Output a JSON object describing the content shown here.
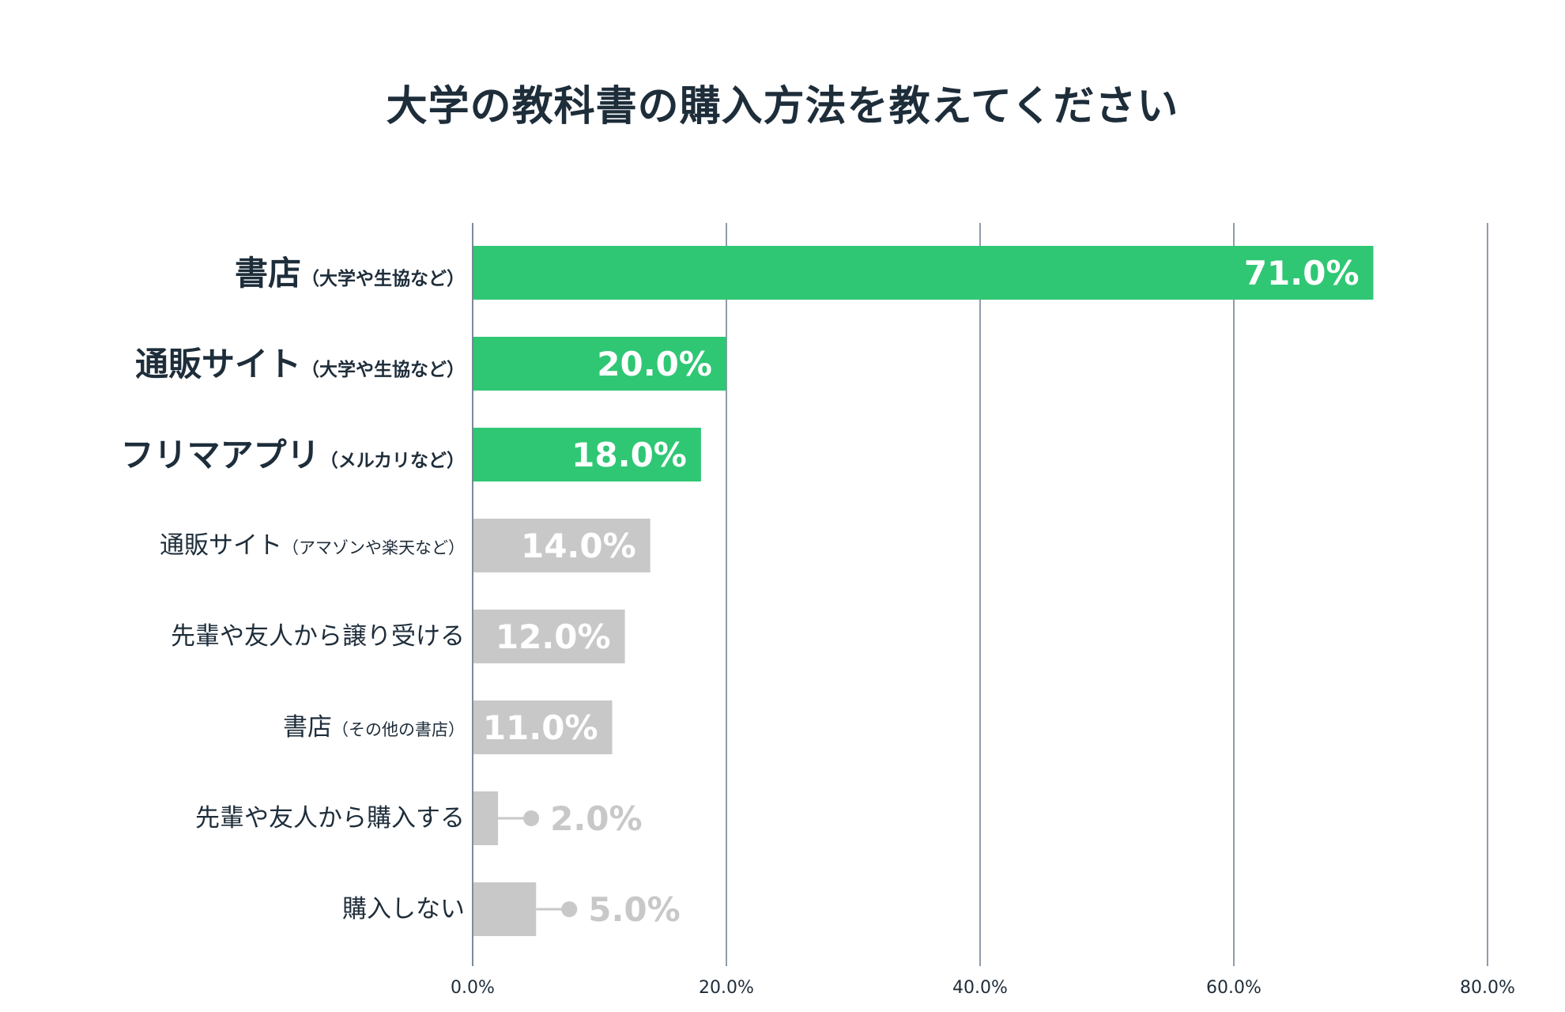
{
  "chart_data": {
    "type": "bar",
    "orientation": "horizontal",
    "title": "大学の教科書の購入方法を教えてください",
    "xlabel": "",
    "ylabel": "",
    "xlim": [
      0,
      80
    ],
    "grid": true,
    "x_ticks": [
      "0.0%",
      "20.0%",
      "40.0%",
      "60.0%",
      "80.0%"
    ],
    "categories": [
      {
        "main": "書店",
        "sub": "（大学や生協など）",
        "highlight": true
      },
      {
        "main": "通販サイト",
        "sub": "（大学や生協など）",
        "highlight": true
      },
      {
        "main": "フリマアプリ",
        "sub": "（メルカリなど）",
        "highlight": true
      },
      {
        "main": "通販サイト",
        "sub": "（アマゾンや楽天など）",
        "highlight": false
      },
      {
        "main": "先輩や友人から譲り受ける",
        "sub": "",
        "highlight": false
      },
      {
        "main": "書店",
        "sub": "（その他の書店）",
        "highlight": false
      },
      {
        "main": "先輩や友人から購入する",
        "sub": "",
        "highlight": false
      },
      {
        "main": "購入しない",
        "sub": "",
        "highlight": false
      }
    ],
    "values": [
      71.0,
      20.0,
      18.0,
      14.0,
      12.0,
      11.0,
      2.0,
      5.0
    ],
    "value_labels": [
      "71.0%",
      "20.0%",
      "18.0%",
      "14.0%",
      "12.0%",
      "11.0%",
      "2.0%",
      "5.0%"
    ],
    "colors": {
      "highlight": "#2fc774",
      "normal": "#c8c8c8",
      "gridline": "#6b7a90",
      "text": "#1e2d3a",
      "inside_label": "#ffffff",
      "outside_label": "#c8c8c8"
    }
  }
}
